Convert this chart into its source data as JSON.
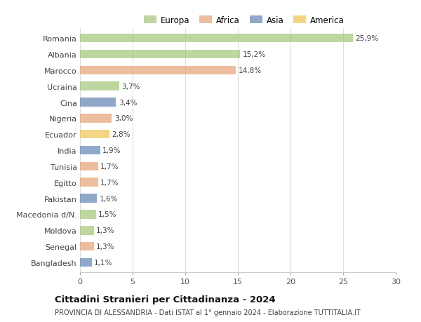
{
  "categories": [
    "Romania",
    "Albania",
    "Marocco",
    "Ucraina",
    "Cina",
    "Nigeria",
    "Ecuador",
    "India",
    "Tunisia",
    "Egitto",
    "Pakistan",
    "Macedonia d/N.",
    "Moldova",
    "Senegal",
    "Bangladesh"
  ],
  "values": [
    25.9,
    15.2,
    14.8,
    3.7,
    3.4,
    3.0,
    2.8,
    1.9,
    1.7,
    1.7,
    1.6,
    1.5,
    1.3,
    1.3,
    1.1
  ],
  "labels": [
    "25,9%",
    "15,2%",
    "14,8%",
    "3,7%",
    "3,4%",
    "3,0%",
    "2,8%",
    "1,9%",
    "1,7%",
    "1,7%",
    "1,6%",
    "1,5%",
    "1,3%",
    "1,3%",
    "1,1%"
  ],
  "colors": [
    "#a8c97f",
    "#a8c97f",
    "#e8a87c",
    "#a8c97f",
    "#6b8cba",
    "#e8a87c",
    "#f0c85a",
    "#6b8cba",
    "#e8a87c",
    "#e8a87c",
    "#6b8cba",
    "#a8c97f",
    "#a8c97f",
    "#e8a87c",
    "#6b8cba"
  ],
  "legend_labels": [
    "Europa",
    "Africa",
    "Asia",
    "America"
  ],
  "legend_colors": [
    "#a8c97f",
    "#e8a87c",
    "#6b8cba",
    "#f0c85a"
  ],
  "title": "Cittadini Stranieri per Cittadinanza - 2024",
  "subtitle": "PROVINCIA DI ALESSANDRIA - Dati ISTAT al 1° gennaio 2024 - Elaborazione TUTTITALIA.IT",
  "xlim": [
    0,
    30
  ],
  "xticks": [
    0,
    5,
    10,
    15,
    20,
    25,
    30
  ],
  "background_color": "#ffffff",
  "grid_color": "#dddddd",
  "bar_alpha": 0.75,
  "bar_height": 0.55
}
